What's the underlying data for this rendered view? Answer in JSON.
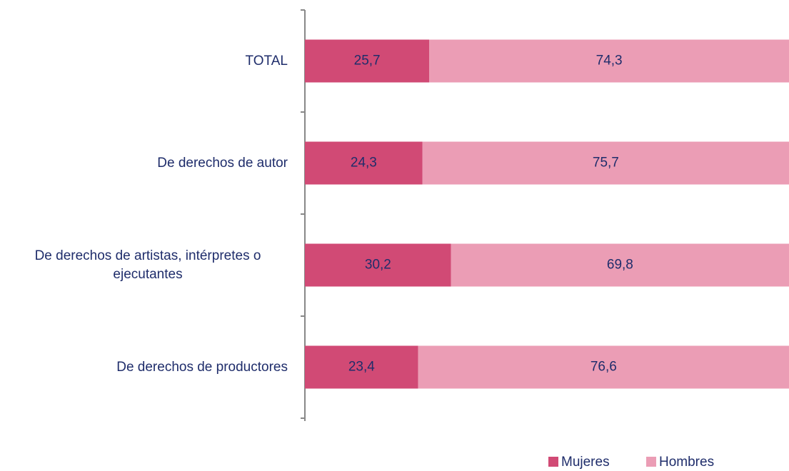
{
  "chart_data": {
    "type": "stacked-bar-horizontal",
    "categories": [
      "TOTAL",
      "De derechos de autor",
      "De derechos de artistas, intérpretes o ejecutantes",
      "De derechos de productores"
    ],
    "series": [
      {
        "name": "Mujeres",
        "color": "#d14a75",
        "values": [
          25.7,
          24.3,
          30.2,
          23.4
        ],
        "value_labels": [
          "25,7",
          "24,3",
          "30,2",
          "23,4"
        ]
      },
      {
        "name": "Hombres",
        "color": "#eb9db5",
        "values": [
          74.3,
          75.7,
          69.8,
          76.6
        ],
        "value_labels": [
          "74,3",
          "75,7",
          "69,8",
          "76,6"
        ]
      }
    ],
    "xlim": [
      0,
      100
    ]
  }
}
